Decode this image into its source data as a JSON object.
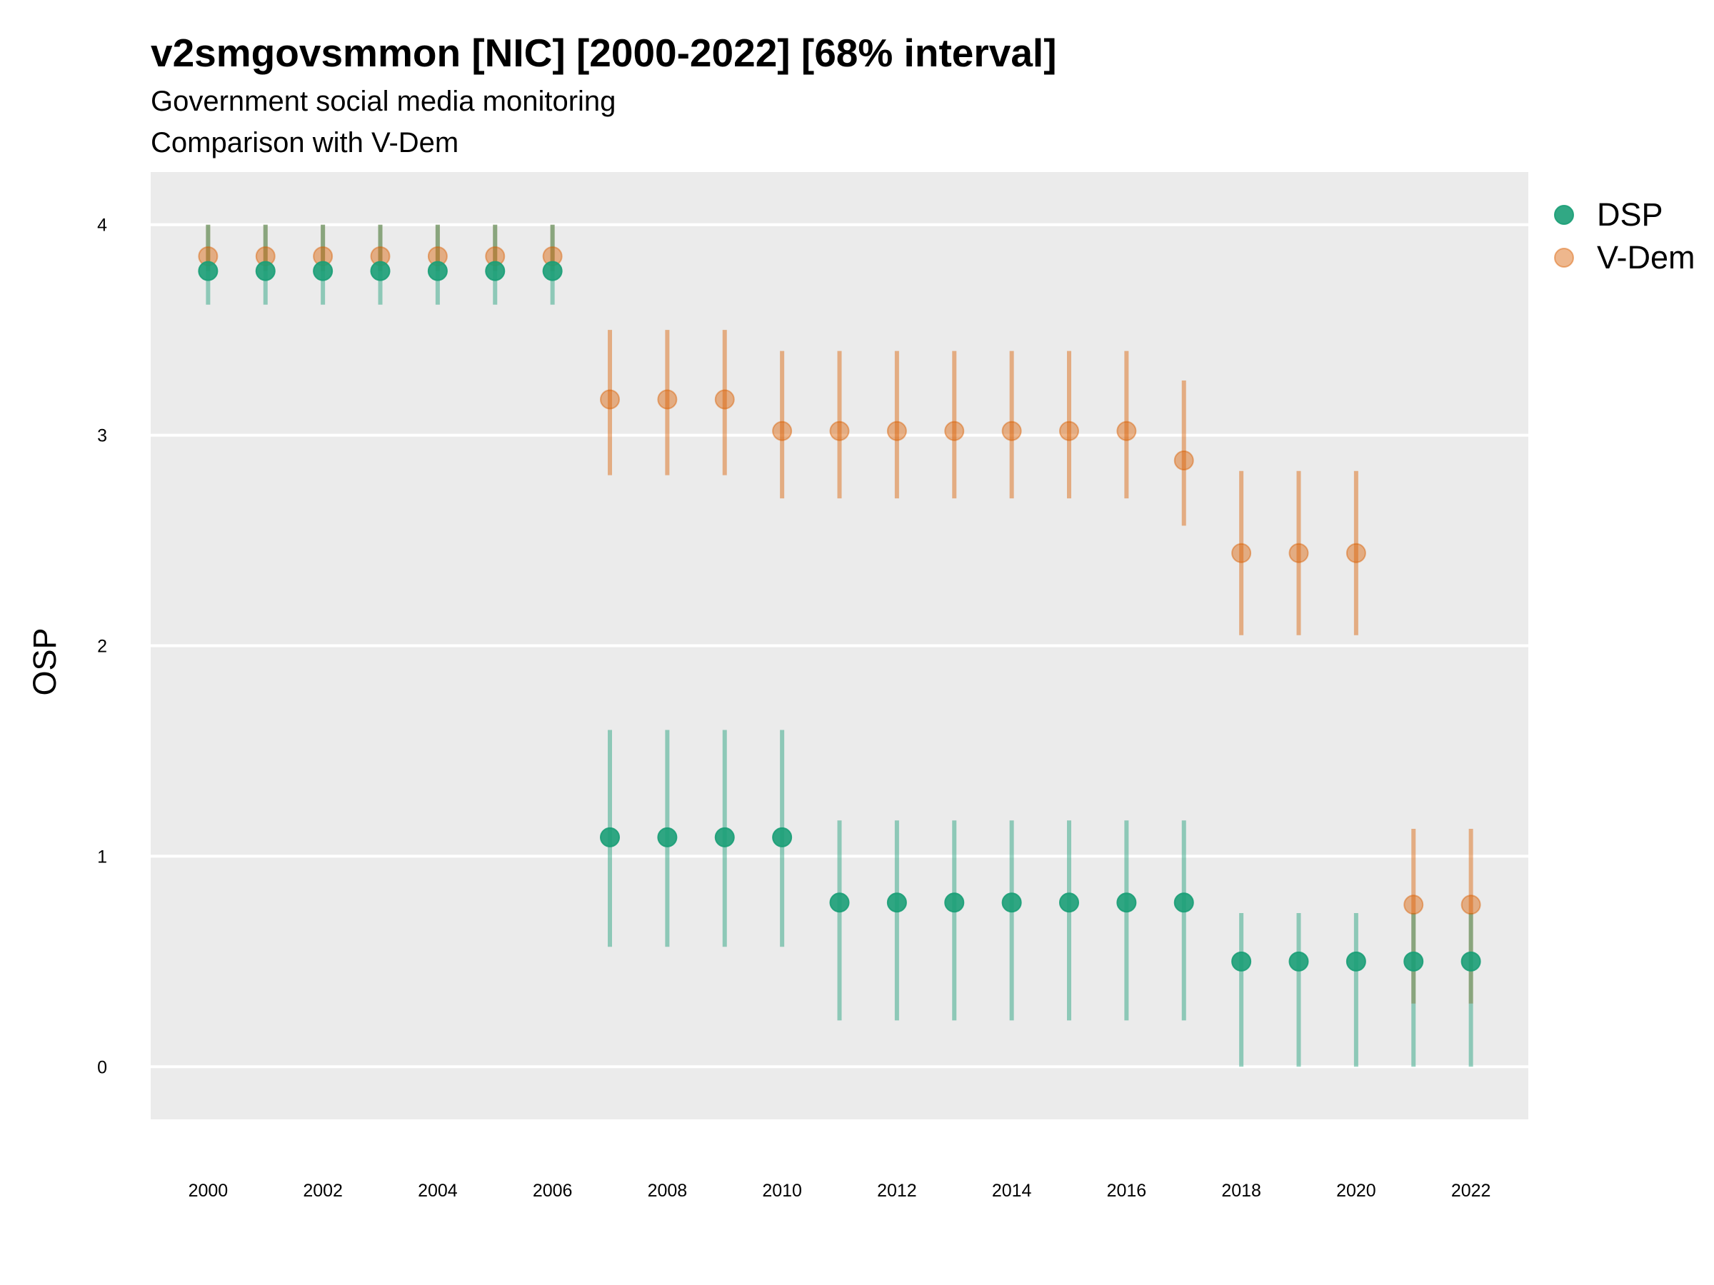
{
  "chart_data": {
    "type": "scatter",
    "title": "v2smgovsmmon [NIC] [2000-2022] [68% interval]",
    "subtitle": "Government social media monitoring",
    "subtitle2": "Comparison with V-Dem",
    "xlabel": "",
    "ylabel": "OSP",
    "xlim": [
      1999,
      2023
    ],
    "ylim": [
      -0.25,
      4.25
    ],
    "x_ticks": [
      2000,
      2002,
      2004,
      2006,
      2008,
      2010,
      2012,
      2014,
      2016,
      2018,
      2020,
      2022
    ],
    "y_ticks": [
      0,
      1,
      2,
      3,
      4
    ],
    "grid": true,
    "legend_position": "right",
    "x": [
      2000,
      2001,
      2002,
      2003,
      2004,
      2005,
      2006,
      2007,
      2008,
      2009,
      2010,
      2011,
      2012,
      2013,
      2014,
      2015,
      2016,
      2017,
      2018,
      2019,
      2020,
      2021,
      2022
    ],
    "series": [
      {
        "name": "DSP",
        "color": "#1b9e77",
        "values": [
          3.78,
          3.78,
          3.78,
          3.78,
          3.78,
          3.78,
          3.78,
          1.09,
          1.09,
          1.09,
          1.09,
          0.78,
          0.78,
          0.78,
          0.78,
          0.78,
          0.78,
          0.78,
          0.5,
          0.5,
          0.5,
          0.5,
          0.5
        ],
        "lower": [
          3.62,
          3.62,
          3.62,
          3.62,
          3.62,
          3.62,
          3.62,
          0.57,
          0.57,
          0.57,
          0.57,
          0.22,
          0.22,
          0.22,
          0.22,
          0.22,
          0.22,
          0.22,
          0.0,
          0.0,
          0.0,
          0.0,
          0.0
        ],
        "upper": [
          4.0,
          4.0,
          4.0,
          4.0,
          4.0,
          4.0,
          4.0,
          1.6,
          1.6,
          1.6,
          1.6,
          1.17,
          1.17,
          1.17,
          1.17,
          1.17,
          1.17,
          1.17,
          0.73,
          0.73,
          0.73,
          0.73,
          0.73
        ]
      },
      {
        "name": "V-Dem",
        "color": "#d95f02",
        "values": [
          3.85,
          3.85,
          3.85,
          3.85,
          3.85,
          3.85,
          3.85,
          3.17,
          3.17,
          3.17,
          3.02,
          3.02,
          3.02,
          3.02,
          3.02,
          3.02,
          3.02,
          2.88,
          2.44,
          2.44,
          2.44,
          0.77,
          0.77
        ],
        "lower": [
          3.78,
          3.78,
          3.78,
          3.78,
          3.78,
          3.78,
          3.78,
          2.81,
          2.81,
          2.81,
          2.7,
          2.7,
          2.7,
          2.7,
          2.7,
          2.7,
          2.7,
          2.57,
          2.05,
          2.05,
          2.05,
          0.3,
          0.3
        ],
        "upper": [
          4.0,
          4.0,
          4.0,
          4.0,
          4.0,
          4.0,
          4.0,
          3.5,
          3.5,
          3.5,
          3.4,
          3.4,
          3.4,
          3.4,
          3.4,
          3.4,
          3.4,
          3.26,
          2.83,
          2.83,
          2.83,
          1.13,
          1.13
        ]
      }
    ]
  }
}
